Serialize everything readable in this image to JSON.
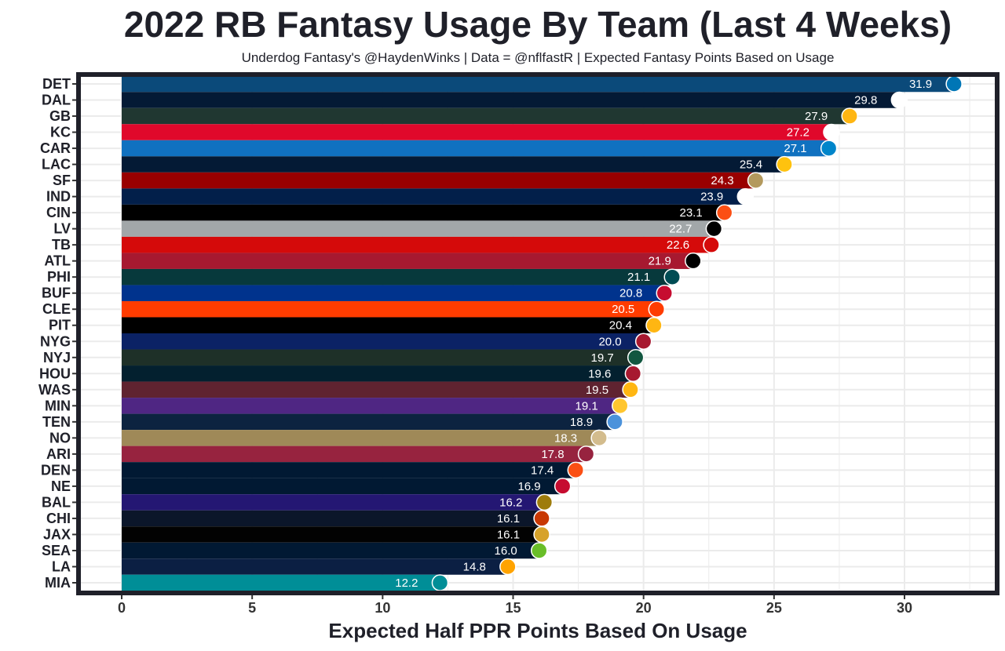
{
  "chart_data": {
    "type": "bar",
    "orientation": "horizontal",
    "title": "2022 RB Fantasy Usage By Team (Last 4 Weeks)",
    "subtitle": "Underdog Fantasy's @HaydenWinks | Data = @nflfastR | Expected Fantasy Points Based on Usage",
    "xlabel": "Expected Half PPR Points Based On Usage",
    "ylabel": "",
    "xlim": [
      -1.5,
      33.3
    ],
    "xticks": [
      0,
      5,
      10,
      15,
      20,
      25,
      30
    ],
    "grid": true,
    "categories": [
      "DET",
      "DAL",
      "GB",
      "KC",
      "CAR",
      "LAC",
      "SF",
      "IND",
      "CIN",
      "LV",
      "TB",
      "ATL",
      "PHI",
      "BUF",
      "CLE",
      "PIT",
      "NYG",
      "NYJ",
      "HOU",
      "WAS",
      "MIN",
      "TEN",
      "NO",
      "ARI",
      "DEN",
      "NE",
      "BAL",
      "CHI",
      "JAX",
      "SEA",
      "LA",
      "MIA"
    ],
    "values": [
      31.9,
      29.8,
      27.9,
      27.2,
      27.1,
      25.4,
      24.3,
      23.9,
      23.1,
      22.7,
      22.6,
      21.9,
      21.1,
      20.8,
      20.5,
      20.4,
      20.0,
      19.7,
      19.6,
      19.5,
      19.1,
      18.9,
      18.3,
      17.8,
      17.4,
      16.9,
      16.2,
      16.1,
      16.1,
      16.0,
      14.8,
      12.2
    ],
    "labels": [
      "31.9",
      "29.8",
      "27.9",
      "27.2",
      "27.1",
      "25.4",
      "24.3",
      "23.9",
      "23.1",
      "22.7",
      "22.6",
      "21.9",
      "21.1",
      "20.8",
      "20.5",
      "20.4",
      "20.0",
      "19.7",
      "19.6",
      "19.5",
      "19.1",
      "18.9",
      "18.3",
      "17.8",
      "17.4",
      "16.9",
      "16.2",
      "16.1",
      "16.1",
      "16.0",
      "14.8",
      "12.2"
    ],
    "colors": [
      "#0B4A7A",
      "#041A35",
      "#203731",
      "#E0082B",
      "#1071C0",
      "#041A35",
      "#990000",
      "#021F4A",
      "#000000",
      "#A2A7A9",
      "#D50A0A",
      "#A71930",
      "#07393C",
      "#00338D",
      "#FF3C00",
      "#000000",
      "#0B2265",
      "#1E3028",
      "#03202F",
      "#5F2330",
      "#4F2683",
      "#0C2340",
      "#9F8958",
      "#97233F",
      "#011933",
      "#011933",
      "#241773",
      "#0B162A",
      "#020202",
      "#011933",
      "#0B1F43",
      "#008E97"
    ],
    "logo_colors": [
      "#0076B6",
      "#FFFFFF",
      "#FFB612",
      "#FFFFFF",
      "#0085CA",
      "#FFC20E",
      "#B3995D",
      "#FFFFFF",
      "#FB4F14",
      "#000000",
      "#D50A0A",
      "#000000",
      "#004C54",
      "#C60C30",
      "#FF3C00",
      "#FFB612",
      "#A71930",
      "#125740",
      "#A71930",
      "#FFB612",
      "#FFC62F",
      "#4B92DB",
      "#D3BC8D",
      "#97233F",
      "#FB4F14",
      "#C60C30",
      "#9E7C0C",
      "#C83803",
      "#D7A22A",
      "#69BE28",
      "#FFA300",
      "#008E97"
    ]
  }
}
